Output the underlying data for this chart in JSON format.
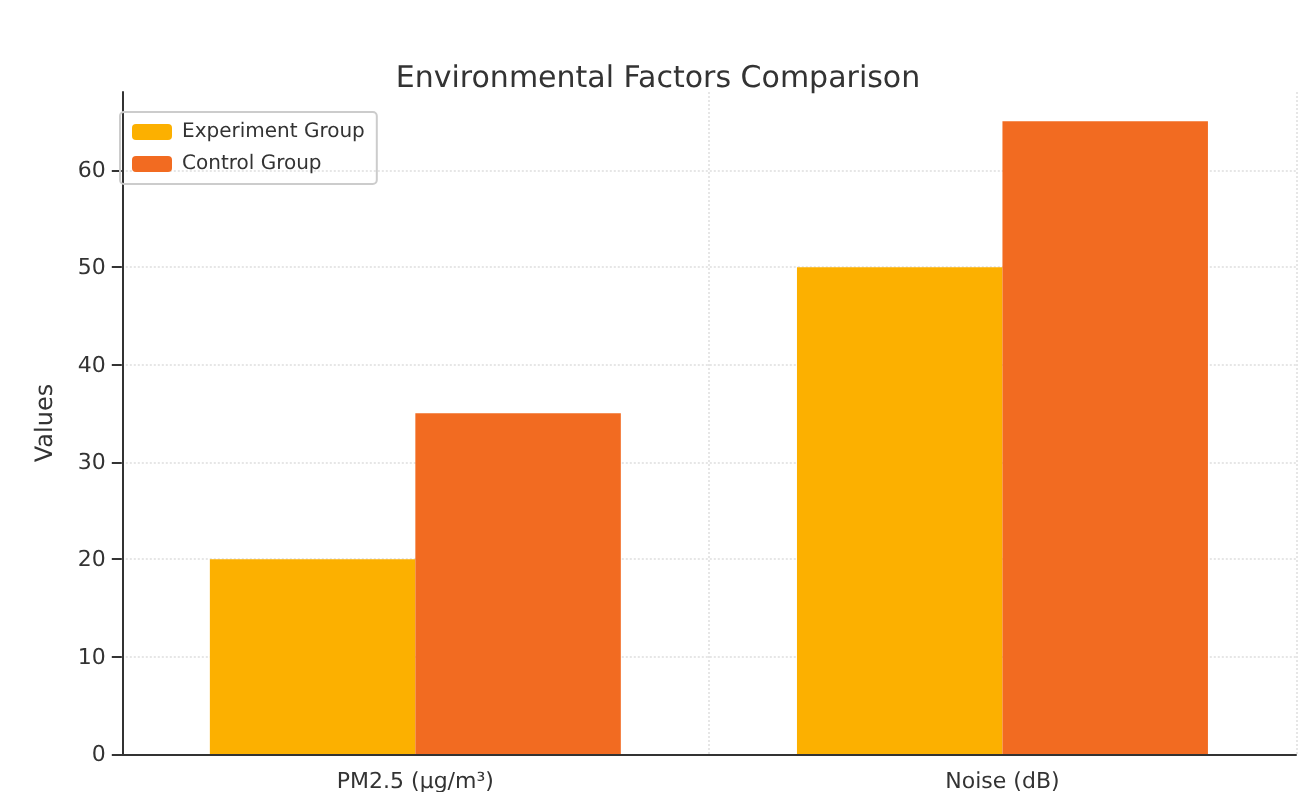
{
  "chart_data": {
    "type": "bar",
    "title": "Environmental Factors Comparison",
    "ylabel": "Values",
    "categories": [
      "PM2.5 (µg/m³)",
      "Noise (dB)"
    ],
    "series": [
      {
        "name": "Experiment Group",
        "color": "#fcb000",
        "values": [
          20,
          50
        ]
      },
      {
        "name": "Control Group",
        "color": "#f26b21",
        "values": [
          35,
          65
        ]
      }
    ],
    "ylim": [
      0,
      68
    ],
    "yticks": [
      0,
      10,
      20,
      30,
      40,
      50,
      60
    ],
    "grid": true,
    "legend": "top left"
  }
}
